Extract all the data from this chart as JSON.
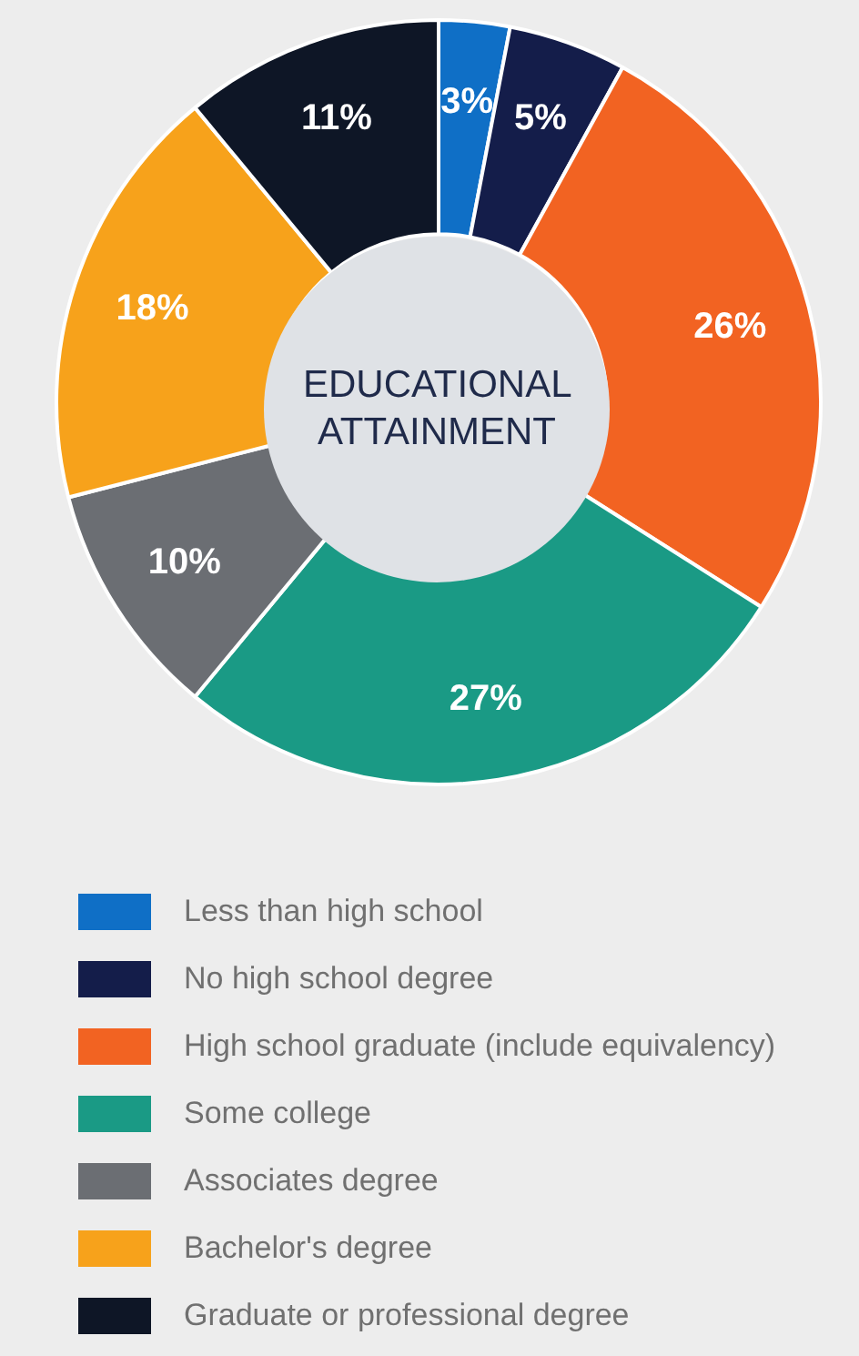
{
  "chart_data": {
    "type": "donut",
    "title": "EDUCATIONAL ATTAINMENT",
    "categories": [
      "Less than high school",
      "No high school degree",
      "High school graduate (include equivalency)",
      "Some college",
      "Associates degree",
      "Bachelor's degree",
      "Graduate or professional degree"
    ],
    "values": [
      3,
      5,
      26,
      27,
      10,
      18,
      11
    ],
    "value_labels": [
      "3%",
      "5%",
      "26%",
      "27%",
      "10%",
      "18%",
      "11%"
    ],
    "colors": [
      "#0f6fc6",
      "#141d4a",
      "#f26322",
      "#1a9a85",
      "#6b6e73",
      "#f7a21b",
      "#0e1626"
    ],
    "legend": "bottom"
  }
}
